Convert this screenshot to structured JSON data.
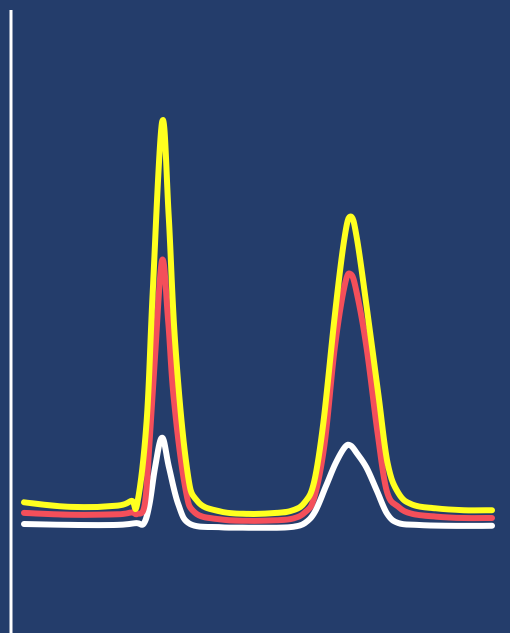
{
  "chart_data": {
    "type": "line",
    "title": "",
    "xlabel": "",
    "ylabel": "",
    "grid": false,
    "legend": "none",
    "xlim": [
      0,
      100
    ],
    "ylim": [
      0,
      100
    ],
    "background_color": "#243d6b",
    "axis_color": "#ffffff",
    "series": [
      {
        "color": "#ffff1f",
        "values": [
          [
            0,
            17.5
          ],
          [
            10,
            16.5
          ],
          [
            20,
            16.8
          ],
          [
            23,
            17.8
          ],
          [
            24.2,
            17.3
          ],
          [
            26.2,
            35
          ],
          [
            27.5,
            63
          ],
          [
            29.5,
            100
          ],
          [
            30.9,
            80
          ],
          [
            32.3,
            52
          ],
          [
            34.8,
            25
          ],
          [
            37,
            17.8
          ],
          [
            42,
            15.5
          ],
          [
            48,
            15
          ],
          [
            54,
            15.2
          ],
          [
            57.5,
            15.8
          ],
          [
            60,
            17.5
          ],
          [
            62,
            22
          ],
          [
            64,
            35
          ],
          [
            66.4,
            58
          ],
          [
            68.5,
            75
          ],
          [
            69.8,
            79.5
          ],
          [
            71.1,
            75
          ],
          [
            73.2,
            60
          ],
          [
            75.7,
            41
          ],
          [
            77.7,
            26
          ],
          [
            80,
            19.5
          ],
          [
            83,
            17
          ],
          [
            88,
            16.2
          ],
          [
            94,
            15.8
          ],
          [
            100,
            15.8
          ]
        ]
      },
      {
        "color": "#f44f5a",
        "values": [
          [
            0,
            15.2
          ],
          [
            10,
            14.8
          ],
          [
            20,
            14.9
          ],
          [
            23,
            15.3
          ],
          [
            24.2,
            15
          ],
          [
            25.8,
            17
          ],
          [
            26.8,
            30
          ],
          [
            28,
            49
          ],
          [
            29.5,
            70
          ],
          [
            30.8,
            57
          ],
          [
            32,
            40
          ],
          [
            34.4,
            21
          ],
          [
            36.5,
            15.3
          ],
          [
            42,
            13.8
          ],
          [
            48,
            13.5
          ],
          [
            54,
            13.6
          ],
          [
            57.5,
            14
          ],
          [
            60,
            15.3
          ],
          [
            62,
            18.5
          ],
          [
            64.2,
            30
          ],
          [
            66.4,
            51
          ],
          [
            68.5,
            64.5
          ],
          [
            69.8,
            67
          ],
          [
            71.1,
            63
          ],
          [
            73.2,
            51
          ],
          [
            75.5,
            33
          ],
          [
            77.5,
            20
          ],
          [
            80,
            16.5
          ],
          [
            83,
            15
          ],
          [
            88,
            14.4
          ],
          [
            94,
            14.1
          ],
          [
            100,
            14.1
          ]
        ]
      },
      {
        "color": "#ffffff",
        "values": [
          [
            0,
            12.8
          ],
          [
            10,
            12.6
          ],
          [
            20,
            12.6
          ],
          [
            24,
            13
          ],
          [
            25.6,
            12.9
          ],
          [
            26.8,
            17
          ],
          [
            28,
            25
          ],
          [
            29.5,
            31.5
          ],
          [
            31,
            25
          ],
          [
            33,
            17
          ],
          [
            35.5,
            12.8
          ],
          [
            42,
            12.1
          ],
          [
            48,
            12
          ],
          [
            54,
            12
          ],
          [
            57.5,
            12.2
          ],
          [
            60,
            13
          ],
          [
            62.2,
            15.5
          ],
          [
            64.5,
            21
          ],
          [
            66.6,
            26
          ],
          [
            68.6,
            29.5
          ],
          [
            69.8,
            29.8
          ],
          [
            71.1,
            28.2
          ],
          [
            73.2,
            25
          ],
          [
            75.4,
            20
          ],
          [
            77.6,
            15
          ],
          [
            80,
            13
          ],
          [
            84,
            12.6
          ],
          [
            90,
            12.4
          ],
          [
            100,
            12.4
          ]
        ]
      }
    ]
  }
}
